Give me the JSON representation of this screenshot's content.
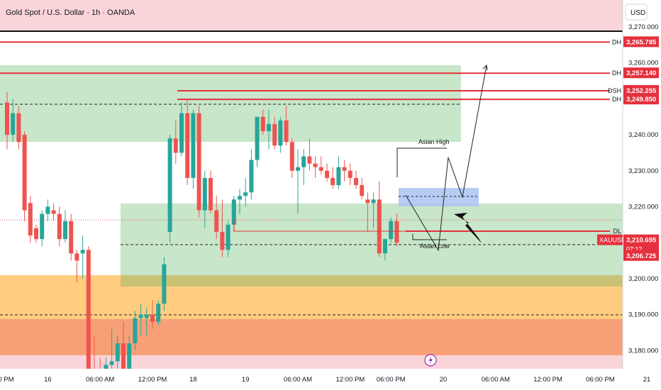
{
  "header": {
    "title": "Gold Spot / U.S. Dollar · 1h · OANDA",
    "currency": "USD"
  },
  "colors": {
    "bull": "#26a69a",
    "bear": "#ef5350",
    "red_line": "#e5303d",
    "green_zone": "#c8e6c9",
    "orange_zone": "#ffcc80",
    "deep_orange_zone": "#f7a078",
    "pink_zone": "#f9d4d8",
    "olive_band": "#c9c275",
    "blue_box": "#a9c3f1"
  },
  "chart_data": {
    "type": "candlestick",
    "y_axis": {
      "min": 3162,
      "max": 3275,
      "ticks": [
        3170,
        3180,
        3190,
        3200,
        3210,
        3220,
        3230,
        3240,
        3250,
        3260,
        3270
      ],
      "tick_labels": [
        "3,170.000",
        "3,180.000",
        "3,190.000",
        "3,200.000",
        "3,210.000",
        "3,220.000",
        "3,230.000",
        "3,240.000",
        "3,250.000",
        "3,260.000",
        "3,270.000"
      ]
    },
    "x_axis": {
      "ticks": [
        {
          "bar": -1,
          "label": "6:00 PM"
        },
        {
          "bar": 7,
          "label": "16"
        },
        {
          "bar": 16,
          "label": "06:00 AM"
        },
        {
          "bar": 25,
          "label": "12:00 PM"
        },
        {
          "bar": 32,
          "label": "18"
        },
        {
          "bar": 41,
          "label": "19"
        },
        {
          "bar": 50,
          "label": "06:00 AM"
        },
        {
          "bar": 59,
          "label": "12:00 PM"
        },
        {
          "bar": 66,
          "label": "06:00 PM"
        },
        {
          "bar": 75,
          "label": "20"
        },
        {
          "bar": 84,
          "label": "06:00 AM"
        },
        {
          "bar": 93,
          "label": "12:00 PM"
        },
        {
          "bar": 102,
          "label": "06:00 PM"
        },
        {
          "bar": 110,
          "label": "21"
        }
      ]
    },
    "candles": [
      {
        "o": 3249,
        "h": 3252,
        "l": 3236,
        "c": 3240
      },
      {
        "o": 3240,
        "h": 3250,
        "l": 3238,
        "c": 3246
      },
      {
        "o": 3246,
        "h": 3248,
        "l": 3236,
        "c": 3238
      },
      {
        "o": 3240,
        "h": 3241,
        "l": 3216,
        "c": 3219
      },
      {
        "o": 3221,
        "h": 3223,
        "l": 3210,
        "c": 3212
      },
      {
        "o": 3214,
        "h": 3215,
        "l": 3210,
        "c": 3211
      },
      {
        "o": 3211,
        "h": 3219,
        "l": 3209,
        "c": 3218
      },
      {
        "o": 3218,
        "h": 3222,
        "l": 3216,
        "c": 3220
      },
      {
        "o": 3219,
        "h": 3221,
        "l": 3216,
        "c": 3218
      },
      {
        "o": 3218,
        "h": 3220,
        "l": 3209,
        "c": 3211
      },
      {
        "o": 3211,
        "h": 3219,
        "l": 3210,
        "c": 3216
      },
      {
        "o": 3216,
        "h": 3218,
        "l": 3205,
        "c": 3207
      },
      {
        "o": 3207,
        "h": 3208,
        "l": 3199,
        "c": 3205
      },
      {
        "o": 3207,
        "h": 3212,
        "l": 3200,
        "c": 3208
      },
      {
        "o": 3208,
        "h": 3209,
        "l": 3165,
        "c": 3174
      },
      {
        "o": 3174,
        "h": 3184,
        "l": 3168,
        "c": 3172
      },
      {
        "o": 3172,
        "h": 3178,
        "l": 3164,
        "c": 3166
      },
      {
        "o": 3166,
        "h": 3178,
        "l": 3164,
        "c": 3176
      },
      {
        "o": 3176,
        "h": 3186,
        "l": 3166,
        "c": 3177
      },
      {
        "o": 3177,
        "h": 3184,
        "l": 3170,
        "c": 3182
      },
      {
        "o": 3182,
        "h": 3188,
        "l": 3172,
        "c": 3174
      },
      {
        "o": 3174,
        "h": 3184,
        "l": 3173,
        "c": 3182
      },
      {
        "o": 3182,
        "h": 3191,
        "l": 3180,
        "c": 3189
      },
      {
        "o": 3189,
        "h": 3193,
        "l": 3184,
        "c": 3190
      },
      {
        "o": 3189,
        "h": 3192,
        "l": 3184,
        "c": 3190
      },
      {
        "o": 3190,
        "h": 3194,
        "l": 3186,
        "c": 3188
      },
      {
        "o": 3188,
        "h": 3194,
        "l": 3187,
        "c": 3193
      },
      {
        "o": 3193,
        "h": 3206,
        "l": 3191,
        "c": 3204
      },
      {
        "o": 3213,
        "h": 3240,
        "l": 3210,
        "c": 3239
      },
      {
        "o": 3239,
        "h": 3244,
        "l": 3232,
        "c": 3235
      },
      {
        "o": 3235,
        "h": 3249,
        "l": 3234,
        "c": 3246
      },
      {
        "o": 3246,
        "h": 3250,
        "l": 3226,
        "c": 3228
      },
      {
        "o": 3228,
        "h": 3247,
        "l": 3225,
        "c": 3246
      },
      {
        "o": 3246,
        "h": 3248,
        "l": 3217,
        "c": 3219
      },
      {
        "o": 3219,
        "h": 3230,
        "l": 3214,
        "c": 3228
      },
      {
        "o": 3228,
        "h": 3230,
        "l": 3218,
        "c": 3219
      },
      {
        "o": 3219,
        "h": 3223,
        "l": 3211,
        "c": 3213
      },
      {
        "o": 3213,
        "h": 3222,
        "l": 3206,
        "c": 3208
      },
      {
        "o": 3208,
        "h": 3216,
        "l": 3206,
        "c": 3215
      },
      {
        "o": 3215,
        "h": 3223,
        "l": 3213,
        "c": 3222
      },
      {
        "o": 3222,
        "h": 3225,
        "l": 3218,
        "c": 3223
      },
      {
        "o": 3223,
        "h": 3228,
        "l": 3220,
        "c": 3224
      },
      {
        "o": 3224,
        "h": 3236,
        "l": 3222,
        "c": 3233
      },
      {
        "o": 3233,
        "h": 3245,
        "l": 3231,
        "c": 3245
      },
      {
        "o": 3245,
        "h": 3247,
        "l": 3240,
        "c": 3241
      },
      {
        "o": 3241,
        "h": 3247,
        "l": 3236,
        "c": 3243
      },
      {
        "o": 3243,
        "h": 3245,
        "l": 3236,
        "c": 3237
      },
      {
        "o": 3237,
        "h": 3245,
        "l": 3235,
        "c": 3244
      },
      {
        "o": 3244,
        "h": 3248,
        "l": 3237,
        "c": 3238
      },
      {
        "o": 3238,
        "h": 3239,
        "l": 3228,
        "c": 3230
      },
      {
        "o": 3230,
        "h": 3236,
        "l": 3218,
        "c": 3231
      },
      {
        "o": 3231,
        "h": 3236,
        "l": 3226,
        "c": 3234
      },
      {
        "o": 3234,
        "h": 3239,
        "l": 3230,
        "c": 3232
      },
      {
        "o": 3232,
        "h": 3234,
        "l": 3228,
        "c": 3231
      },
      {
        "o": 3231,
        "h": 3234,
        "l": 3229,
        "c": 3230
      },
      {
        "o": 3230,
        "h": 3232,
        "l": 3227,
        "c": 3228
      },
      {
        "o": 3228,
        "h": 3231,
        "l": 3225,
        "c": 3226
      },
      {
        "o": 3226,
        "h": 3234,
        "l": 3225,
        "c": 3231
      },
      {
        "o": 3231,
        "h": 3233,
        "l": 3227,
        "c": 3230
      },
      {
        "o": 3230,
        "h": 3232,
        "l": 3226,
        "c": 3228
      },
      {
        "o": 3228,
        "h": 3230,
        "l": 3225,
        "c": 3226
      },
      {
        "o": 3226,
        "h": 3228,
        "l": 3222,
        "c": 3223
      },
      {
        "o": 3222,
        "h": 3224,
        "l": 3213,
        "c": 3221
      },
      {
        "o": 3221,
        "h": 3224,
        "l": 3214,
        "c": 3222
      },
      {
        "o": 3222,
        "h": 3227,
        "l": 3206,
        "c": 3207
      },
      {
        "o": 3207,
        "h": 3211,
        "l": 3205,
        "c": 3211
      },
      {
        "o": 3211,
        "h": 3217,
        "l": 3210,
        "c": 3216
      },
      {
        "o": 3216,
        "h": 3218,
        "l": 3209,
        "c": 3210
      }
    ],
    "levels": [
      {
        "label": "DH",
        "price": 3265.785,
        "price_label": "3,265.785"
      },
      {
        "label": "DH",
        "price": 3257.14,
        "price_label": "3,257.140"
      },
      {
        "label": "DSH",
        "price": 3252.255,
        "price_label": "3,252.255"
      },
      {
        "label": "DH",
        "price": 3249.85,
        "price_label": "3,249.850"
      },
      {
        "label": "DL",
        "price": 3207.7,
        "price_label": ""
      }
    ],
    "current": {
      "symbol": "XAUUSD",
      "price": 3210.695,
      "price_label": "3,210.695",
      "countdown": "07:12"
    },
    "extra_price_label": {
      "price": 3206.725,
      "label": "3,206.725"
    },
    "annotations": [
      {
        "text": "Asian High",
        "price": 3232.5
      },
      {
        "text": "Asian Low",
        "price": 3205.3
      }
    ]
  }
}
